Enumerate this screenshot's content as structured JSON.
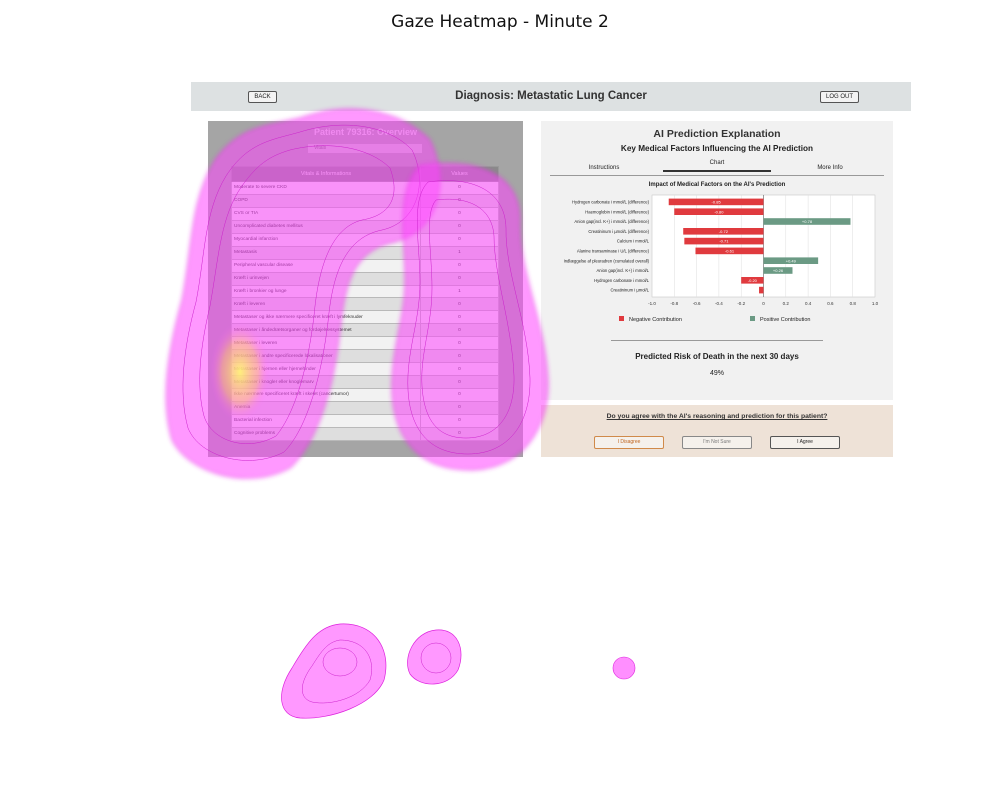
{
  "figure": {
    "title": "Gaze Heatmap - Minute 2"
  },
  "topbar": {
    "back_label": "BACK",
    "title": "Diagnosis: Metastatic Lung Cancer",
    "logout_label": "LOG OUT"
  },
  "patient_panel": {
    "title": "Patient 79316: Overview",
    "subheader": "Vitals",
    "columns": [
      "Vitals & Informations",
      "Values"
    ],
    "rows": [
      {
        "label": "Moderate to severe CKD",
        "value": "0"
      },
      {
        "label": "COPD",
        "value": "0"
      },
      {
        "label": "CVS or TIA",
        "value": "0"
      },
      {
        "label": "Uncomplicated diabetes mellitus",
        "value": "0"
      },
      {
        "label": "Myocardial infarction",
        "value": "0"
      },
      {
        "label": "Metastasis",
        "value": "1"
      },
      {
        "label": "Peripheral vascular disease",
        "value": "0"
      },
      {
        "label": "Kræft i urinvejen",
        "value": "0"
      },
      {
        "label": "Kræft i bronkier og lunge",
        "value": "1"
      },
      {
        "label": "Kræft i leveren",
        "value": "0"
      },
      {
        "label": "Metastaser og ikke nærmere specificeret kræft i lymfeknuder",
        "value": "0"
      },
      {
        "label": "Metastaser i åndedrætsorganer og fordøjelsessystemet",
        "value": "0"
      },
      {
        "label": "Metastaser i leveren",
        "value": "0"
      },
      {
        "label": "Metastaser i andre specificerede lokalisationer",
        "value": "0"
      },
      {
        "label": "Metastaser i hjernen eller hjernehinder",
        "value": "0"
      },
      {
        "label": "Metastaser i knogler eller knoglemarv",
        "value": "0"
      },
      {
        "label": "Ikke nærmere specificeret kræft i skelet (cancertumor)",
        "value": "0"
      },
      {
        "label": "Anemia",
        "value": "0"
      },
      {
        "label": "Bacterial infection",
        "value": "0"
      },
      {
        "label": "Cognitive problems",
        "value": "0"
      }
    ]
  },
  "ai_panel": {
    "title": "AI Prediction Explanation",
    "subtitle": "Key Medical Factors Influencing the AI Prediction",
    "tabs": [
      {
        "label": "Instructions",
        "active": false
      },
      {
        "label": "Chart",
        "active": true
      },
      {
        "label": "More Info",
        "active": false
      }
    ],
    "prediction_title": "Predicted Risk of Death in the next 30 days",
    "prediction_value": "49%"
  },
  "chart_data": {
    "type": "bar",
    "orientation": "horizontal",
    "title": "Impact of Medical Factors on the AI's Prediction",
    "categories": [
      "Hydrogen carbonate i mmol/L (difference)",
      "Haemoglobin i mmol/L (difference)",
      "Anion gap(incl. K+) i mmol/L (difference)",
      "Creatininum i µmol/L (difference)",
      "Calcium i mmol/L",
      "Alanine transaminase i U/L (difference)",
      "Indlæggelse af pleuradren (cumulated overall)",
      "Anion gap(incl. K+) i mmol/L",
      "Hydrogen carbonate i mmol/L",
      "Creatininum i µmol/L"
    ],
    "values": [
      -0.85,
      -0.8,
      0.78,
      -0.72,
      -0.71,
      -0.61,
      0.49,
      0.26,
      -0.2,
      -0.04
    ],
    "labels": [
      "-0.85",
      "-0.80",
      "+0.78",
      "-0.72",
      "-0.71",
      "-0.61",
      "+0.49",
      "+0.26",
      "-0.20",
      ""
    ],
    "xlim": [
      -1.0,
      1.0
    ],
    "xticks": [
      "-1.0",
      "-0.8",
      "-0.6",
      "-0.4",
      "-0.2",
      "0",
      "0.2",
      "0.4",
      "0.6",
      "0.8",
      "1.0"
    ],
    "grid": true,
    "legend": [
      {
        "name": "Negative Contribution",
        "color": "#e03a3e"
      },
      {
        "name": "Positive Contribution",
        "color": "#6b9a84"
      }
    ]
  },
  "agreement": {
    "question": "Do you agree with the AI's reasoning and prediction for this patient?",
    "disagree_label": "I Disagree",
    "not_sure_label": "I'm Not Sure",
    "agree_label": "I Agree"
  },
  "colors": {
    "negative": "#e03a3e",
    "positive": "#6b9a84",
    "heat_magenta": "#ff33ff",
    "heat_yellow": "#ffff55"
  }
}
